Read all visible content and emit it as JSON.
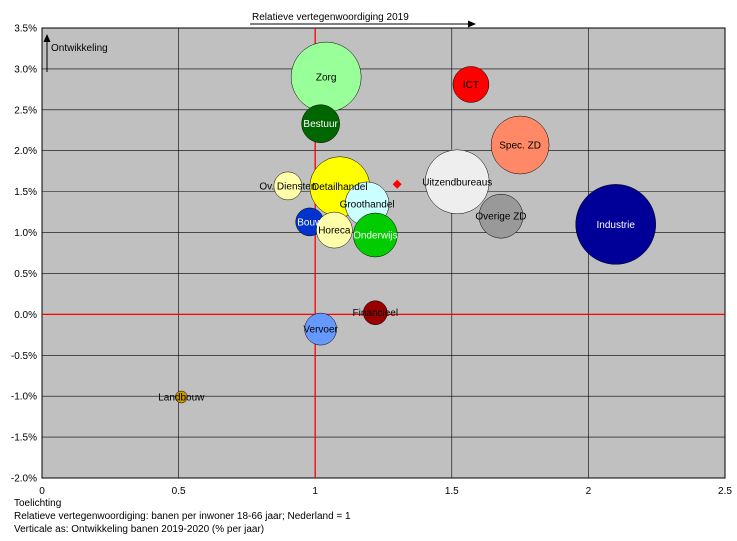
{
  "chart_data": {
    "type": "bubble",
    "xlim": [
      0,
      2.5
    ],
    "ylim": [
      -2.0,
      3.5
    ],
    "x_ticks": [
      "0",
      "0.5",
      "1",
      "1.5",
      "2",
      "2.5"
    ],
    "x_tick_values": [
      0,
      0.5,
      1,
      1.5,
      2,
      2.5
    ],
    "y_ticks": [
      "3.5%",
      "3.0%",
      "2.5%",
      "2.0%",
      "1.5%",
      "1.0%",
      "0.5%",
      "0.0%",
      "-0.5%",
      "-1.0%",
      "-1.5%",
      "-2.0%"
    ],
    "y_tick_values": [
      3.5,
      3.0,
      2.5,
      2.0,
      1.5,
      1.0,
      0.5,
      0.0,
      -0.5,
      -1.0,
      -1.5,
      -2.0
    ],
    "x_arrow_label": "Relatieve vertegenwoordiging 2019",
    "y_arrow_label": "Ontwikkeling",
    "reference_lines": {
      "x": 1,
      "y": 0,
      "color": "#ff0000"
    },
    "grid": true,
    "plot_background": "#c0c0c0",
    "series": [
      {
        "name": "Zorg",
        "x": 1.04,
        "y": 2.9,
        "r": 35,
        "color": "#99ff99",
        "label_color": "#000000"
      },
      {
        "name": "ICT",
        "x": 1.57,
        "y": 2.81,
        "r": 18,
        "color": "#ff0000",
        "label_color": "#000000"
      },
      {
        "name": "Bestuur",
        "x": 1.02,
        "y": 2.33,
        "r": 19,
        "color": "#006600",
        "label_color": "#ffffff"
      },
      {
        "name": "Spec. ZD",
        "x": 1.75,
        "y": 2.07,
        "r": 29,
        "color": "#ff8866",
        "label_color": "#000000"
      },
      {
        "name": "Ov. Diensten",
        "x": 0.9,
        "y": 1.57,
        "r": 14,
        "color": "#ffffaa",
        "label_color": "#000000"
      },
      {
        "name": "Detailhandel",
        "x": 1.09,
        "y": 1.56,
        "r": 30,
        "color": "#ffff00",
        "label_color": "#000000"
      },
      {
        "name": "Uitzendbureaus",
        "x": 1.52,
        "y": 1.62,
        "r": 32,
        "color": "#eeeeee",
        "label_color": "#000000"
      },
      {
        "name": "Groothandel",
        "x": 1.19,
        "y": 1.35,
        "r": 22,
        "color": "#ccffff",
        "label_color": "#000000"
      },
      {
        "name": "Overige ZD",
        "x": 1.68,
        "y": 1.2,
        "r": 22,
        "color": "#999999",
        "label_color": "#000000"
      },
      {
        "name": "Industrie",
        "x": 2.1,
        "y": 1.1,
        "r": 40,
        "color": "#000099",
        "label_color": "#ffffff"
      },
      {
        "name": "Bouw",
        "x": 0.98,
        "y": 1.13,
        "r": 14,
        "color": "#0033cc",
        "label_color": "#ffffff"
      },
      {
        "name": "Horeca",
        "x": 1.07,
        "y": 1.03,
        "r": 18,
        "color": "#ffffaa",
        "label_color": "#000000"
      },
      {
        "name": "Onderwijs",
        "x": 1.22,
        "y": 0.97,
        "r": 22,
        "color": "#00cc00",
        "label_color": "#ffffff"
      },
      {
        "name": "Financieel",
        "x": 1.22,
        "y": 0.02,
        "r": 12,
        "color": "#990000",
        "label_color": "#000000"
      },
      {
        "name": "Vervoer",
        "x": 1.02,
        "y": -0.18,
        "r": 16,
        "color": "#6699ff",
        "label_color": "#000000"
      },
      {
        "name": "Landbouw",
        "x": 0.51,
        "y": -1.01,
        "r": 6,
        "color": "#cc9900",
        "label_color": "#000000"
      }
    ],
    "marker": {
      "x": 1.3,
      "y": 1.59,
      "color": "#ff0000",
      "shape": "diamond"
    }
  },
  "notes": {
    "heading": "Toelichting",
    "line1": "Relatieve vertegenwoordiging: banen per inwoner 18-66 jaar; Nederland = 1",
    "line2": "Verticale as: Ontwikkeling banen 2019-2020 (% per jaar)"
  }
}
